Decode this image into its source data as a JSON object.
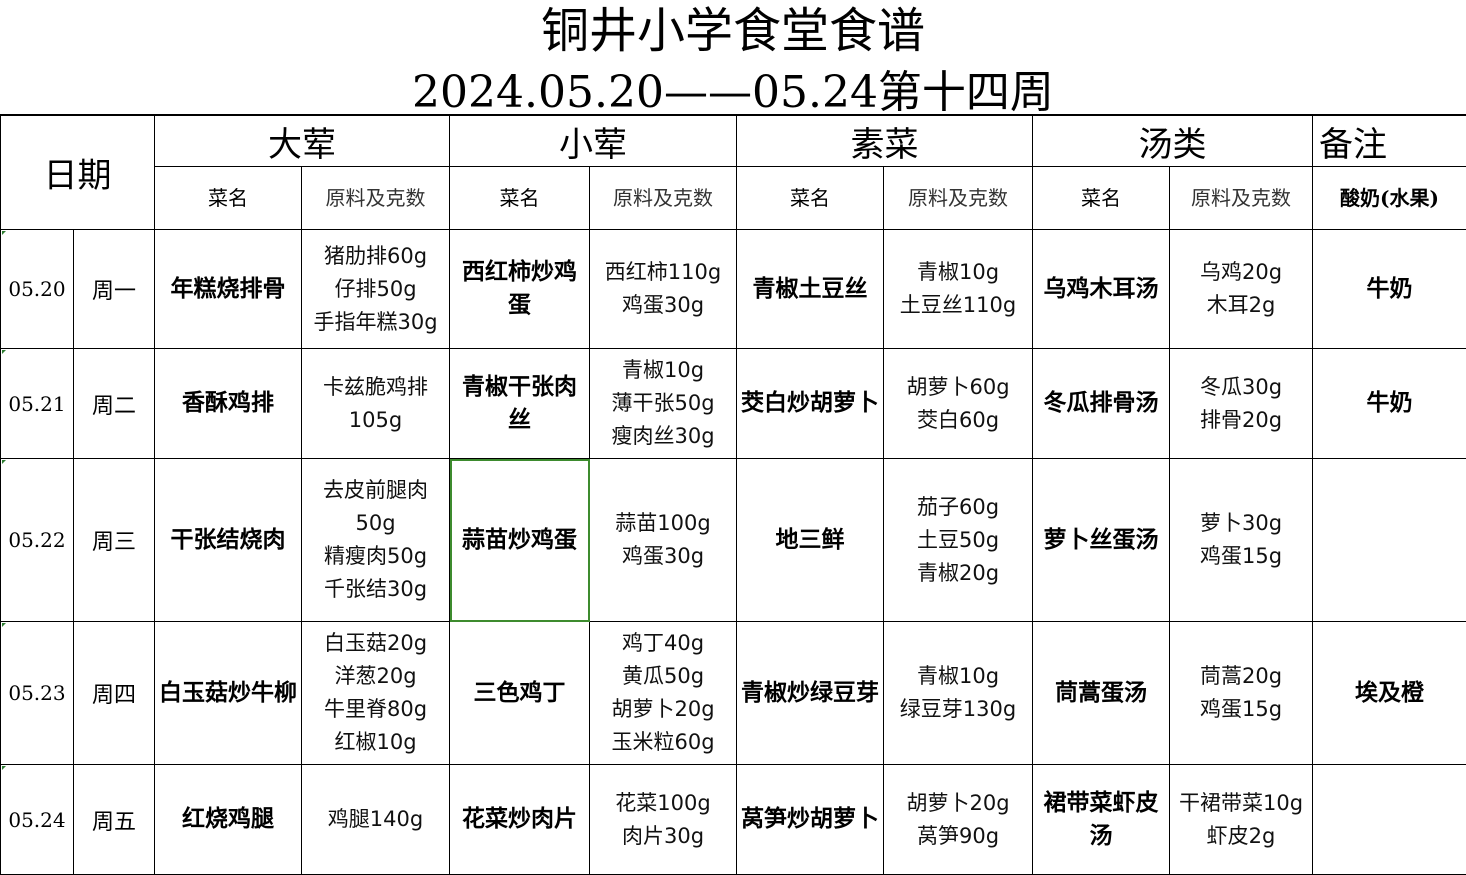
{
  "title": "铜井小学食堂食谱",
  "subtitle": "2024.05.20——05.24第十四周",
  "headers": {
    "date": "日期",
    "groups": [
      "大荤",
      "小荤",
      "素菜",
      "汤类",
      "备注"
    ],
    "dish_label": "菜名",
    "raw_label": "原料及克数",
    "note_sub": "酸奶(水果)"
  },
  "rows": [
    {
      "date": "05.20",
      "weekday": "周一",
      "big_dish": "年糕烧排骨",
      "big_ing": [
        "猪肋排60g",
        "仔排50g",
        "手指年糕30g"
      ],
      "small_dish": "西红柿炒鸡蛋",
      "small_ing": [
        "西红柿110g",
        "鸡蛋30g"
      ],
      "veg_dish": "青椒土豆丝",
      "veg_ing": [
        "青椒10g",
        "土豆丝110g"
      ],
      "soup_dish": "乌鸡木耳汤",
      "soup_ing": [
        "乌鸡20g",
        "木耳2g"
      ],
      "note": "牛奶"
    },
    {
      "date": "05.21",
      "weekday": "周二",
      "big_dish": "香酥鸡排",
      "big_ing": [
        "卡兹脆鸡排105g"
      ],
      "small_dish": "青椒干张肉丝",
      "small_ing": [
        "青椒10g",
        "薄干张50g",
        "瘦肉丝30g"
      ],
      "veg_dish": "茭白炒胡萝卜",
      "veg_ing": [
        "胡萝卜60g",
        "茭白60g"
      ],
      "soup_dish": "冬瓜排骨汤",
      "soup_ing": [
        "冬瓜30g",
        "排骨20g"
      ],
      "note": "牛奶"
    },
    {
      "date": "05.22",
      "weekday": "周三",
      "big_dish": "干张结烧肉",
      "big_ing": [
        "去皮前腿肉50g",
        "精瘦肉50g",
        "千张结30g"
      ],
      "small_dish": "蒜苗炒鸡蛋",
      "small_ing": [
        "蒜苗100g",
        "鸡蛋30g"
      ],
      "veg_dish": "地三鲜",
      "veg_ing": [
        "茄子60g",
        "土豆50g",
        "青椒20g"
      ],
      "soup_dish": "萝卜丝蛋汤",
      "soup_ing": [
        "萝卜30g",
        "鸡蛋15g"
      ],
      "note": ""
    },
    {
      "date": "05.23",
      "weekday": "周四",
      "big_dish": "白玉菇炒牛柳",
      "big_ing": [
        "白玉菇20g",
        "洋葱20g",
        "牛里脊80g",
        "红椒10g"
      ],
      "small_dish": "三色鸡丁",
      "small_ing": [
        "鸡丁40g",
        "黄瓜50g",
        "胡萝卜20g",
        "玉米粒60g"
      ],
      "veg_dish": "青椒炒绿豆芽",
      "veg_ing": [
        "青椒10g",
        "绿豆芽130g"
      ],
      "soup_dish": "茼蒿蛋汤",
      "soup_ing": [
        "茼蒿20g",
        "鸡蛋15g"
      ],
      "note": "埃及橙"
    },
    {
      "date": "05.24",
      "weekday": "周五",
      "big_dish": "红烧鸡腿",
      "big_ing": [
        "鸡腿140g"
      ],
      "small_dish": "花菜炒肉片",
      "small_ing": [
        "花菜100g",
        "肉片30g"
      ],
      "veg_dish": "莴笋炒胡萝卜",
      "veg_ing": [
        "胡萝卜20g",
        "莴笋90g"
      ],
      "soup_dish": "裙带菜虾皮汤",
      "soup_ing": [
        "干裙带菜10g",
        "虾皮2g"
      ],
      "note": ""
    }
  ],
  "colors": {
    "grid": "#000000",
    "selection": "#3d8b2e"
  }
}
